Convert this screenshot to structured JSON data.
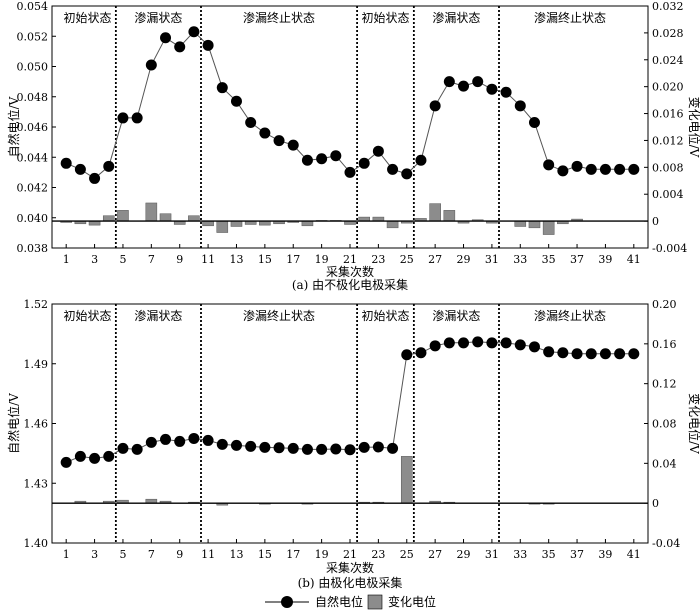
{
  "chart_data": [
    {
      "type": "line",
      "caption": "(a) 由不极化电极采集",
      "xlabel": "采集次数",
      "ylabel_left": "自然电位/V",
      "ylabel_right": "变化电位/V",
      "xlim": [
        0,
        42
      ],
      "ylim_left": [
        0.038,
        0.054
      ],
      "ylim_right": [
        -0.004,
        0.032
      ],
      "x_ticks": [
        1,
        3,
        5,
        7,
        9,
        11,
        13,
        15,
        17,
        19,
        21,
        23,
        25,
        27,
        29,
        31,
        33,
        35,
        37,
        39,
        41
      ],
      "y_ticks_left": [
        "0.038",
        "0.040",
        "0.042",
        "0.044",
        "0.046",
        "0.048",
        "0.050",
        "0.052",
        "0.054"
      ],
      "y_ticks_right": [
        "-0.004",
        "0",
        "0.004",
        "0.008",
        "0.012",
        "0.016",
        "0.020",
        "0.024",
        "0.028",
        "0.032"
      ],
      "phase_dividers": [
        4.5,
        10.5,
        21.5,
        25.5,
        31.5
      ],
      "phases": [
        {
          "label": "初始状态",
          "x": 2.5
        },
        {
          "label": "渗漏状态",
          "x": 7.5
        },
        {
          "label": "渗漏终止状态",
          "x": 16
        },
        {
          "label": "初始状态",
          "x": 23.5
        },
        {
          "label": "渗漏状态",
          "x": 28.5
        },
        {
          "label": "渗漏终止状态",
          "x": 36.5
        }
      ],
      "series": [
        {
          "name": "自然电位",
          "axis": "left",
          "kind": "line-marker",
          "x": [
            1,
            2,
            3,
            4,
            5,
            6,
            7,
            8,
            9,
            10,
            11,
            12,
            13,
            14,
            15,
            16,
            17,
            18,
            19,
            20,
            21,
            22,
            23,
            24,
            25,
            26,
            27,
            28,
            29,
            30,
            31,
            32,
            33,
            34,
            35,
            36,
            37,
            38,
            39,
            40,
            41
          ],
          "values": [
            0.0436,
            0.0432,
            0.0426,
            0.0434,
            0.0466,
            0.0466,
            0.0501,
            0.0519,
            0.0513,
            0.0523,
            0.0514,
            0.0486,
            0.0477,
            0.0463,
            0.0456,
            0.0451,
            0.0448,
            0.0438,
            0.0439,
            0.0441,
            0.043,
            0.0436,
            0.0444,
            0.0432,
            0.0429,
            0.0438,
            0.0474,
            0.049,
            0.0487,
            0.049,
            0.0485,
            0.0483,
            0.0474,
            0.0463,
            0.0435,
            0.0431,
            0.0434,
            0.0432,
            0.0432,
            0.0432,
            0.0432
          ]
        },
        {
          "name": "变化电位",
          "axis": "right",
          "kind": "bar",
          "x": [
            1,
            2,
            3,
            4,
            5,
            6,
            7,
            8,
            9,
            10,
            11,
            12,
            13,
            14,
            15,
            16,
            17,
            18,
            19,
            20,
            21,
            22,
            23,
            24,
            25,
            26,
            27,
            28,
            29,
            30,
            31,
            32,
            33,
            34,
            35,
            36,
            37,
            38,
            39,
            40,
            41
          ],
          "values": [
            -0.0002,
            -0.0004,
            -0.0006,
            0.0008,
            0.0016,
            0,
            0.0027,
            0.0011,
            -0.0005,
            0.0008,
            -0.0007,
            -0.0017,
            -0.0008,
            -0.0005,
            -0.0006,
            -0.0004,
            -0.0002,
            -0.0007,
            0.0001,
            0.0001,
            -0.0005,
            0.0006,
            0.0006,
            -0.001,
            -0.0003,
            0.0004,
            0.0026,
            0.0016,
            -0.0003,
            0.0002,
            -0.0003,
            0,
            -0.0008,
            -0.001,
            -0.002,
            -0.0004,
            0.0003,
            0,
            0,
            0,
            0
          ]
        }
      ]
    },
    {
      "type": "line",
      "caption": "(b) 由极化电极采集",
      "xlabel": "采集次数",
      "ylabel_left": "自然电位/V",
      "ylabel_right": "变化电位/V",
      "xlim": [
        0,
        42
      ],
      "ylim_left": [
        1.4,
        1.52
      ],
      "ylim_right": [
        -0.04,
        0.2
      ],
      "x_ticks": [
        1,
        3,
        5,
        7,
        9,
        11,
        13,
        15,
        17,
        19,
        21,
        23,
        25,
        27,
        29,
        31,
        33,
        35,
        37,
        39,
        41
      ],
      "y_ticks_left": [
        "1.40",
        "1.43",
        "1.46",
        "1.49",
        "1.52"
      ],
      "y_ticks_right": [
        "-0.04",
        "0",
        "0.04",
        "0.08",
        "0.12",
        "0.16",
        "0.20"
      ],
      "phase_dividers": [
        4.5,
        10.5,
        21.5,
        25.5,
        31.5
      ],
      "phases": [
        {
          "label": "初始状态",
          "x": 2.5
        },
        {
          "label": "渗漏状态",
          "x": 7.5
        },
        {
          "label": "渗漏终止状态",
          "x": 16
        },
        {
          "label": "初始状态",
          "x": 23.5
        },
        {
          "label": "渗漏状态",
          "x": 28.5
        },
        {
          "label": "渗漏终止状态",
          "x": 36.5
        }
      ],
      "series": [
        {
          "name": "自然电位",
          "axis": "left",
          "kind": "line-marker",
          "x": [
            1,
            2,
            3,
            4,
            5,
            6,
            7,
            8,
            9,
            10,
            11,
            12,
            13,
            14,
            15,
            16,
            17,
            18,
            19,
            20,
            21,
            22,
            23,
            24,
            25,
            26,
            27,
            28,
            29,
            30,
            31,
            32,
            33,
            34,
            35,
            36,
            37,
            38,
            39,
            40,
            41
          ],
          "values": [
            1.4405,
            1.4435,
            1.4425,
            1.4435,
            1.4475,
            1.447,
            1.4505,
            1.452,
            1.451,
            1.4525,
            1.4515,
            1.4495,
            1.449,
            1.4485,
            1.448,
            1.4478,
            1.4475,
            1.447,
            1.447,
            1.4472,
            1.4468,
            1.448,
            1.4482,
            1.4475,
            1.4945,
            1.4955,
            1.499,
            1.5005,
            1.5005,
            1.501,
            1.5005,
            1.5005,
            1.4995,
            1.4985,
            1.496,
            1.4955,
            1.495,
            1.495,
            1.495,
            1.495,
            1.495
          ]
        },
        {
          "name": "变化电位",
          "axis": "right",
          "kind": "bar",
          "x": [
            1,
            2,
            3,
            4,
            5,
            6,
            7,
            8,
            9,
            10,
            11,
            12,
            13,
            14,
            15,
            16,
            17,
            18,
            19,
            20,
            21,
            22,
            23,
            24,
            25,
            26,
            27,
            28,
            29,
            30,
            31,
            32,
            33,
            34,
            35,
            36,
            37,
            38,
            39,
            40,
            41
          ],
          "values": [
            0,
            0.002,
            0,
            0.002,
            0.003,
            0,
            0.004,
            0.002,
            0,
            0.001,
            0,
            -0.002,
            0,
            0,
            -0.001,
            0,
            0,
            -0.001,
            0,
            0,
            0,
            0.001,
            0.001,
            0,
            0.047,
            0,
            0.002,
            0.001,
            0,
            0,
            0,
            0,
            0,
            -0.001,
            -0.001,
            0,
            0,
            0,
            0,
            0,
            0
          ]
        }
      ]
    }
  ],
  "legend": {
    "items": [
      {
        "label": "自然电位",
        "kind": "line-marker"
      },
      {
        "label": "变化电位",
        "kind": "bar"
      }
    ]
  },
  "colors": {
    "marker": "#000000",
    "line": "#555555",
    "bar": "#8c8c8c",
    "divider": "#000000"
  }
}
